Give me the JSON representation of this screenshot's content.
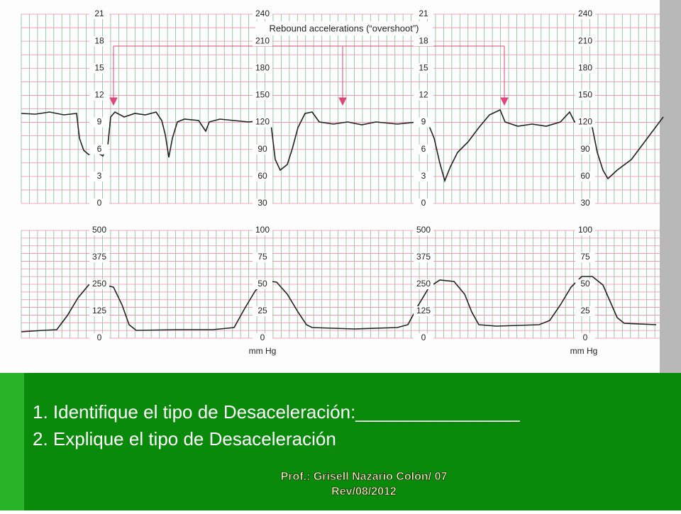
{
  "fhr_strip": {
    "annotation": "Rebound accelerations (“overshoot”)",
    "scale_a": [
      21,
      18,
      15,
      12,
      9,
      6,
      3,
      0
    ],
    "scale_b": [
      240,
      210,
      180,
      150,
      120,
      90,
      60,
      30
    ]
  },
  "uc_strip": {
    "scale_a": [
      500,
      375,
      250,
      125,
      0
    ],
    "scale_b": [
      100,
      75,
      50,
      25,
      0
    ],
    "unit_label": "mm Hg"
  },
  "questions": [
    "1. Identifique el tipo de Desaceleración:________________",
    "2. Explique  el tipo de Desaceleración"
  ],
  "footer": [
    "Prof.: Grisell Nazario Colón/ 07",
    "Rev/08/2012"
  ]
}
